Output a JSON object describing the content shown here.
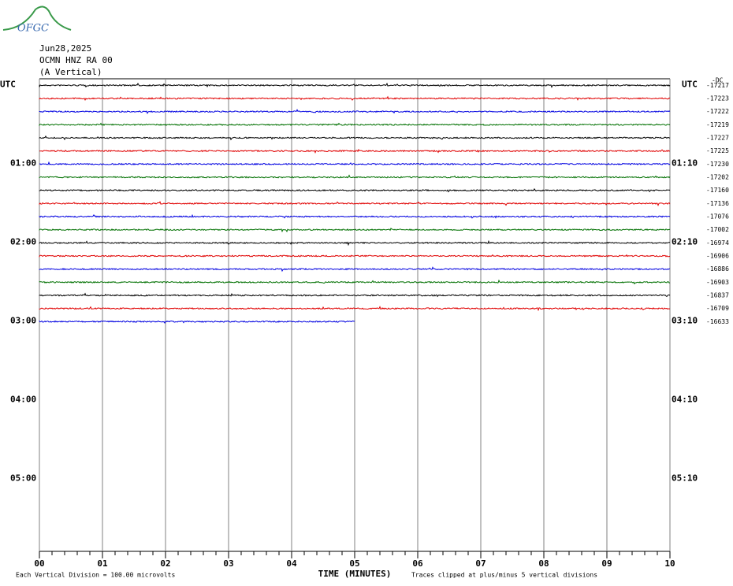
{
  "logo": "OFGC",
  "header": [
    "Jun28,2025",
    "OCMN HNZ RA 00",
    "(A Vertical)"
  ],
  "chart_data": {
    "type": "helicorder",
    "xlabel": "TIME (MINUTES)",
    "xlim": [
      0,
      10
    ],
    "xticks": [
      {
        "value": 0,
        "label": "00"
      },
      {
        "value": 1,
        "label": "01"
      },
      {
        "value": 2,
        "label": "02"
      },
      {
        "value": 3,
        "label": "03"
      },
      {
        "value": 4,
        "label": "04"
      },
      {
        "value": 5,
        "label": "05"
      },
      {
        "value": 6,
        "label": "06"
      },
      {
        "value": 7,
        "label": "07"
      },
      {
        "value": 8,
        "label": "08"
      },
      {
        "value": 9,
        "label": "09"
      },
      {
        "value": 10,
        "label": "10"
      }
    ],
    "rows": 36,
    "left_labels": [
      "UTC",
      "01:00",
      "02:00",
      "03:00",
      "04:00",
      "05:00"
    ],
    "right_labels": [
      "UTC",
      "01:10",
      "02:10",
      "03:10",
      "04:10",
      "05:10"
    ],
    "dc_label": "-DC",
    "colors": [
      "#000000",
      "#e00000",
      "#0000e0",
      "#007000"
    ],
    "traces": [
      {
        "offset": "-17217",
        "end": 10
      },
      {
        "offset": "-17223",
        "end": 10
      },
      {
        "offset": "-17222",
        "end": 10
      },
      {
        "offset": "-17219",
        "end": 10
      },
      {
        "offset": "-17227",
        "end": 10
      },
      {
        "offset": "-17225",
        "end": 10
      },
      {
        "offset": "-17230",
        "end": 10
      },
      {
        "offset": "-17202",
        "end": 10
      },
      {
        "offset": "-17160",
        "end": 10
      },
      {
        "offset": "-17136",
        "end": 10
      },
      {
        "offset": "-17076",
        "end": 10
      },
      {
        "offset": "-17002",
        "end": 10
      },
      {
        "offset": "-16974",
        "end": 10
      },
      {
        "offset": "-16906",
        "end": 10
      },
      {
        "offset": "-16886",
        "end": 10
      },
      {
        "offset": "-16903",
        "end": 10
      },
      {
        "offset": "-16837",
        "end": 10
      },
      {
        "offset": "-16709",
        "end": 10
      },
      {
        "offset": "-16633",
        "end": 5
      }
    ],
    "footnote_left": "Each Vertical Division =  100.00 microvolts",
    "footnote_right": "Traces clipped at plus/minus 5 vertical divisions"
  }
}
